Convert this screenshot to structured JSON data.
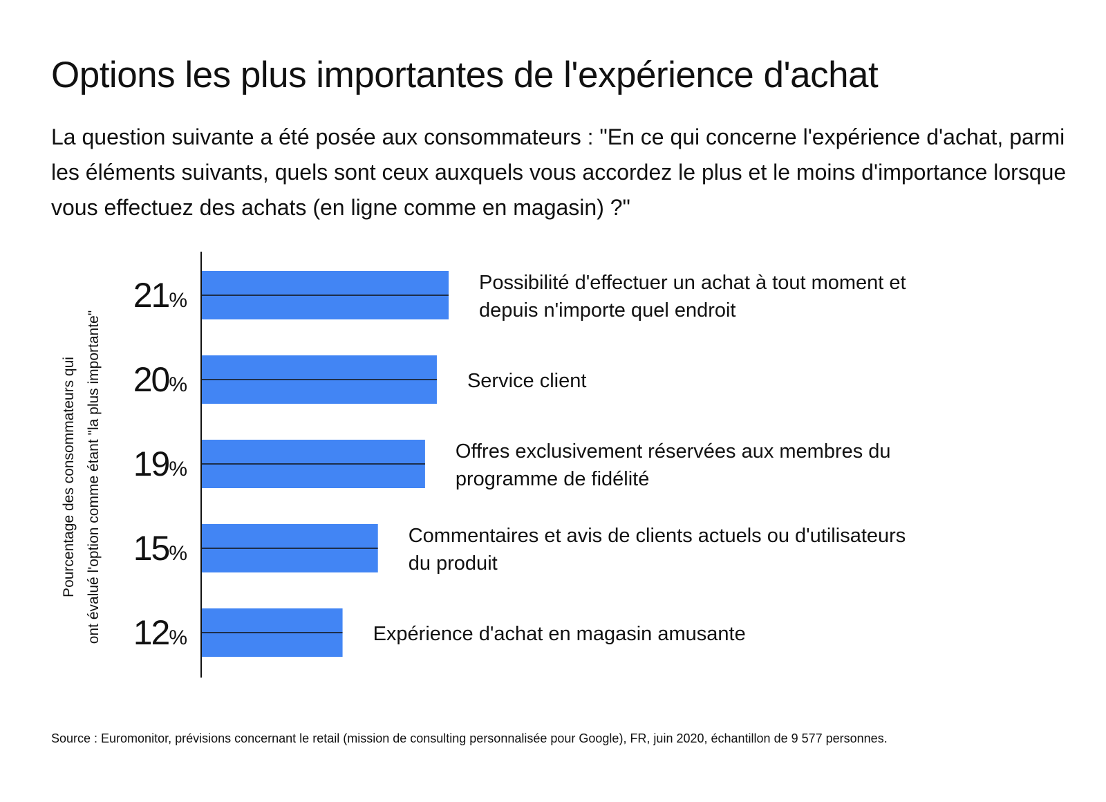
{
  "title": "Options les plus importantes de l'expérience d'achat",
  "subtitle": "La question suivante a été posée aux consommateurs : \"En ce qui concerne l'expérience d'achat, parmi les éléments suivants, quels sont ceux auxquels vous accordez le plus et le moins d'importance lorsque vous effectuez des achats (en ligne comme en magasin) ?\"",
  "source": "Source : Euromonitor, prévisions concernant le retail (mission de consulting personnalisée pour Google), FR, juin 2020, échantillon de 9 577 personnes.",
  "colors": {
    "bar": "#4285F4",
    "axis": "#111111",
    "text": "#111111"
  },
  "chart_data": {
    "type": "bar",
    "orientation": "horizontal",
    "title": "Options les plus importantes de l'expérience d'achat",
    "ylabel_lines": [
      "Pourcentage des consommateurs qui",
      "ont évalué l'option comme étant \"la plus importante\""
    ],
    "unit": "%",
    "xlim": [
      0,
      21
    ],
    "categories": [
      "Possibilité d'effectuer un achat à tout moment et depuis n'importe quel endroit",
      "Service client",
      "Offres exclusivement réservées aux membres du programme de fidélité",
      "Commentaires et avis de clients actuels ou d'utilisateurs du produit",
      "Expérience d'achat en magasin amusante"
    ],
    "label_lines": [
      [
        "Possibilité d'effectuer un achat à tout moment et",
        "depuis n'importe quel endroit"
      ],
      [
        "Service client"
      ],
      [
        "Offres exclusivement réservées aux membres du",
        "programme de fidélité"
      ],
      [
        "Commentaires et avis de clients actuels ou d'utilisateurs",
        "du produit"
      ],
      [
        "Expérience d'achat en magasin amusante"
      ]
    ],
    "values": [
      21,
      20,
      19,
      15,
      12
    ]
  }
}
